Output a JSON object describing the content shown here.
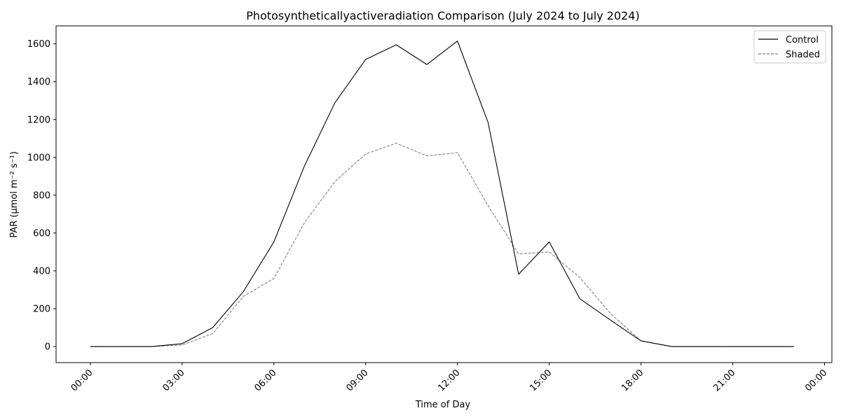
{
  "chart_data": {
    "type": "line",
    "title": "Photosyntheticallyactiveradiation Comparison (July 2024 to July 2024)",
    "xlabel": "Time of Day",
    "ylabel": "PAR (μmol m⁻² s⁻¹)",
    "x": [
      "00:00",
      "01:00",
      "02:00",
      "03:00",
      "04:00",
      "05:00",
      "06:00",
      "07:00",
      "08:00",
      "09:00",
      "10:00",
      "11:00",
      "12:00",
      "13:00",
      "14:00",
      "15:00",
      "16:00",
      "17:00",
      "18:00",
      "19:00",
      "20:00",
      "21:00",
      "22:00",
      "23:00"
    ],
    "xticks": [
      "00:00",
      "03:00",
      "06:00",
      "09:00",
      "12:00",
      "15:00",
      "18:00",
      "21:00",
      "00:00"
    ],
    "yticks": [
      0,
      200,
      400,
      600,
      800,
      1000,
      1200,
      1400,
      1600
    ],
    "ylim": [
      -85,
      1695
    ],
    "grid": false,
    "legend_position": "top-right",
    "series": [
      {
        "name": "Control",
        "color": "#000000",
        "style": "solid",
        "values": [
          0,
          0,
          0,
          15,
          100,
          290,
          553,
          955,
          1290,
          1518,
          1595,
          1491,
          1615,
          1185,
          382,
          553,
          253,
          140,
          30,
          0,
          0,
          0,
          0,
          0
        ]
      },
      {
        "name": "Shaded",
        "color": "#808080",
        "style": "dashed",
        "values": [
          0,
          0,
          0,
          8,
          68,
          265,
          360,
          655,
          873,
          1018,
          1075,
          1008,
          1025,
          745,
          490,
          500,
          365,
          175,
          30,
          0,
          0,
          0,
          0,
          0
        ]
      }
    ]
  }
}
